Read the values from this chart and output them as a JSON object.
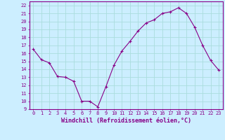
{
  "x": [
    0,
    1,
    2,
    3,
    4,
    5,
    6,
    7,
    8,
    9,
    10,
    11,
    12,
    13,
    14,
    15,
    16,
    17,
    18,
    19,
    20,
    21,
    22,
    23
  ],
  "y": [
    16.5,
    15.2,
    14.8,
    13.1,
    13.0,
    12.5,
    10.0,
    10.0,
    9.3,
    11.8,
    14.5,
    16.3,
    17.5,
    18.8,
    19.8,
    20.2,
    21.0,
    21.2,
    21.7,
    21.0,
    19.3,
    17.0,
    15.1,
    13.9
  ],
  "line_color": "#880088",
  "marker": "+",
  "marker_color": "#880088",
  "bg_color": "#cceeff",
  "grid_color": "#aadddd",
  "xlabel": "Windchill (Refroidissement éolien,°C)",
  "xlabel_color": "#880088",
  "tick_color": "#880088",
  "spine_color": "#880088",
  "xlim": [
    -0.5,
    23.5
  ],
  "ylim": [
    9,
    22.5
  ],
  "yticks": [
    9,
    10,
    11,
    12,
    13,
    14,
    15,
    16,
    17,
    18,
    19,
    20,
    21,
    22
  ],
  "xticks": [
    0,
    1,
    2,
    3,
    4,
    5,
    6,
    7,
    8,
    9,
    10,
    11,
    12,
    13,
    14,
    15,
    16,
    17,
    18,
    19,
    20,
    21,
    22,
    23
  ],
  "tick_fontsize": 5.0,
  "xlabel_fontsize": 6.0,
  "figsize": [
    3.2,
    2.0
  ],
  "dpi": 100
}
